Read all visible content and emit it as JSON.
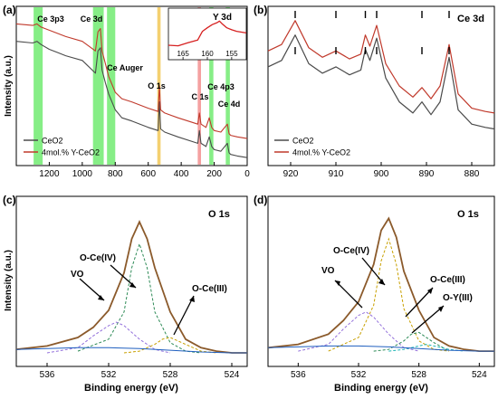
{
  "chart_data": [
    {
      "panel": "(a)",
      "type": "line",
      "xlabel": "",
      "ylabel": "Intensity (a.u.)",
      "xlim": [
        1400,
        0
      ],
      "x_ticks": [
        "1200",
        "1000",
        "800",
        "600",
        "400",
        "200",
        "0"
      ],
      "x_tick_values": [
        1200,
        1000,
        800,
        600,
        400,
        200,
        0
      ],
      "ylim": [
        0,
        100
      ],
      "legend": {
        "placement": "bottom-left",
        "entries": [
          "CeO2",
          "4mol.% Y-CeO2"
        ]
      },
      "series": [
        {
          "name": "CeO2",
          "color": "#4a4a4a",
          "x": [
            1400,
            1300,
            1275,
            1250,
            1200,
            1150,
            1100,
            1000,
            920,
            905,
            890,
            880,
            860,
            840,
            800,
            760,
            700,
            600,
            540,
            532,
            525,
            500,
            420,
            300,
            290,
            280,
            250,
            230,
            215,
            200,
            160,
            120,
            110,
            100,
            60,
            0
          ],
          "y": [
            78,
            77,
            78,
            76,
            73,
            71,
            69,
            66,
            58,
            72,
            74,
            60,
            52,
            45,
            35,
            30,
            28,
            24,
            22,
            40,
            23,
            21,
            18,
            14,
            22,
            14,
            12,
            18,
            12,
            10,
            9,
            14,
            8,
            7,
            6,
            5
          ]
        },
        {
          "name": "4mol.% Y-CeO2",
          "color": "#c0392b",
          "x": [
            1400,
            1300,
            1275,
            1250,
            1200,
            1150,
            1100,
            1000,
            920,
            905,
            890,
            880,
            860,
            840,
            800,
            760,
            700,
            600,
            540,
            532,
            525,
            500,
            420,
            300,
            290,
            280,
            250,
            230,
            215,
            200,
            160,
            120,
            110,
            100,
            60,
            0
          ],
          "y": [
            89,
            88,
            89,
            87,
            85,
            83,
            81,
            78,
            72,
            84,
            86,
            72,
            64,
            56,
            46,
            42,
            40,
            36,
            34,
            50,
            35,
            33,
            30,
            26,
            33,
            26,
            24,
            30,
            24,
            22,
            21,
            26,
            20,
            19,
            18,
            17
          ]
        }
      ],
      "highlights": [
        {
          "label": "Ce 3p3",
          "x_range": [
            1240,
            1295
          ],
          "color": "#5ee85e"
        },
        {
          "label": "Ce 3d",
          "x_range": [
            870,
            935
          ],
          "color": "#5ee85e"
        },
        {
          "label": "Ce Auger",
          "x_range": [
            800,
            850
          ],
          "color": "#5ee85e"
        },
        {
          "label": "O 1s",
          "x_range": [
            525,
            545
          ],
          "color": "#f0c040"
        },
        {
          "label": "C 1s",
          "x_range": [
            280,
            300
          ],
          "color": "#f08080"
        },
        {
          "label": "Ce 4p3",
          "x_range": [
            205,
            230
          ],
          "color": "#5ee85e"
        },
        {
          "label": "Ce 4d",
          "x_range": [
            105,
            130
          ],
          "color": "#5ee85e"
        }
      ],
      "inset": {
        "title": "Y 3d",
        "xlim": [
          168,
          152
        ],
        "x_ticks": [
          "165",
          "160",
          "155"
        ],
        "x_tick_values": [
          165,
          160,
          155
        ],
        "series": [
          {
            "name": "4mol.% Y-CeO2",
            "color": "#d62020",
            "x": [
              168,
              166,
              164,
              162,
              161,
              160,
              159,
              158,
              157.5,
              157,
              156,
              155,
              154,
              152
            ],
            "y": [
              28,
              27,
              33,
              38,
              55,
              62,
              68,
              72,
              75,
              70,
              62,
              58,
              55,
              52
            ]
          }
        ]
      }
    },
    {
      "panel": "(b)",
      "type": "line",
      "title": "Ce 3d",
      "xlabel": "",
      "ylabel": "",
      "xlim": [
        925,
        875
      ],
      "x_ticks": [
        "920",
        "910",
        "900",
        "890",
        "880"
      ],
      "x_tick_values": [
        920,
        910,
        900,
        890,
        880
      ],
      "legend": {
        "placement": "bottom-left",
        "entries": [
          "CeO2",
          "4mol.% Y-CeO2"
        ]
      },
      "peak_markers": [
        919,
        910,
        903.5,
        901,
        891,
        885
      ],
      "series": [
        {
          "name": "CeO2",
          "color": "#4a4a4a",
          "x": [
            925,
            922,
            919,
            916,
            913,
            910,
            907,
            904.5,
            903.5,
            902.5,
            901,
            899,
            896,
            893,
            891,
            889,
            887,
            885,
            883,
            880,
            877,
            875
          ],
          "y": [
            62,
            66,
            82,
            64,
            58,
            62,
            57,
            60,
            73,
            66,
            80,
            55,
            40,
            33,
            40,
            32,
            40,
            68,
            35,
            26,
            24,
            23
          ]
        },
        {
          "name": "4mol.% Y-CeO2",
          "color": "#c0392b",
          "x": [
            925,
            922,
            919,
            916,
            913,
            910,
            907,
            904.5,
            903.5,
            902.5,
            901,
            899,
            896,
            893,
            891,
            889,
            887,
            885,
            883,
            880,
            877,
            875
          ],
          "y": [
            72,
            76,
            91,
            74,
            68,
            72,
            67,
            70,
            82,
            75,
            88,
            64,
            50,
            43,
            49,
            42,
            50,
            76,
            45,
            36,
            34,
            33
          ]
        }
      ]
    },
    {
      "panel": "(c)",
      "type": "line",
      "title": "O 1s",
      "xlabel": "Binding energy (eV)",
      "ylabel": "Intensity (a.u.)",
      "xlim": [
        538,
        523
      ],
      "x_ticks": [
        "536",
        "532",
        "528",
        "524"
      ],
      "x_tick_values": [
        536,
        532,
        528,
        524
      ],
      "annotations": [
        "O-Ce(IV)",
        "VO",
        "O-Ce(III)"
      ],
      "series": [
        {
          "name": "fit envelope",
          "color": "#8b5a2b",
          "x": [
            538,
            536,
            534,
            533,
            532,
            531,
            530.5,
            530,
            529.5,
            529,
            528,
            527,
            526,
            525,
            524,
            523
          ],
          "y": [
            10,
            12,
            17,
            23,
            33,
            55,
            75,
            85,
            75,
            58,
            32,
            16,
            11,
            9,
            8,
            8
          ]
        },
        {
          "name": "O-Ce(IV)",
          "color": "#2e8b57",
          "x": [
            534,
            532,
            531,
            530.5,
            530,
            529.5,
            529,
            528,
            527,
            526
          ],
          "y": [
            9,
            16,
            32,
            58,
            72,
            58,
            32,
            14,
            9,
            8
          ]
        },
        {
          "name": "VO",
          "color": "#9370db",
          "x": [
            536,
            534,
            533,
            532,
            531.5,
            531,
            530,
            529,
            528
          ],
          "y": [
            8,
            11,
            18,
            24,
            26,
            24,
            16,
            10,
            8
          ]
        },
        {
          "name": "O-Ce(III)",
          "color": "#c8a000",
          "x": [
            531,
            530,
            529,
            528.5,
            528,
            527,
            526,
            525
          ],
          "y": [
            8,
            9,
            13,
            16,
            17,
            13,
            9,
            8
          ]
        },
        {
          "name": "background",
          "color": "#1f5fbf",
          "x": [
            538,
            536,
            534,
            532,
            530,
            528,
            526,
            524,
            523
          ],
          "y": [
            10,
            10.5,
            11,
            11,
            10.5,
            9.5,
            8.5,
            8,
            8
          ]
        }
      ]
    },
    {
      "panel": "(d)",
      "type": "line",
      "title": "O 1s",
      "xlabel": "Binding energy (eV)",
      "ylabel": "",
      "xlim": [
        538,
        523
      ],
      "x_ticks": [
        "536",
        "532",
        "528",
        "524"
      ],
      "x_tick_values": [
        536,
        532,
        528,
        524
      ],
      "annotations": [
        "O-Ce(IV)",
        "VO",
        "O-Ce(III)",
        "O-Y(III)"
      ],
      "series": [
        {
          "name": "fit envelope",
          "color": "#8b5a2b",
          "x": [
            538,
            536,
            534,
            533,
            532,
            531,
            530.5,
            530,
            529.5,
            529,
            528,
            527,
            526,
            525,
            524,
            523
          ],
          "y": [
            11,
            13,
            19,
            27,
            38,
            60,
            80,
            87,
            76,
            56,
            33,
            17,
            12,
            10,
            9,
            9
          ]
        },
        {
          "name": "O-Ce(IV)",
          "color": "#c8a000",
          "x": [
            534,
            532,
            531,
            530.5,
            530,
            529.5,
            529,
            528,
            527,
            526
          ],
          "y": [
            9,
            17,
            36,
            62,
            75,
            60,
            34,
            15,
            10,
            9
          ]
        },
        {
          "name": "VO",
          "color": "#9370db",
          "x": [
            536,
            534,
            533,
            532,
            531.5,
            531,
            530,
            529,
            528
          ],
          "y": [
            9,
            13,
            22,
            30,
            32,
            29,
            19,
            11,
            9
          ]
        },
        {
          "name": "O-Ce(III)",
          "color": "#2e8b57",
          "x": [
            531,
            530,
            529,
            528.5,
            528,
            527,
            526
          ],
          "y": [
            9,
            10,
            15,
            19,
            20,
            14,
            9
          ]
        },
        {
          "name": "O-Y(III)",
          "color": "#1fb5b5",
          "x": [
            530,
            529,
            528,
            527.5,
            527,
            526,
            525
          ],
          "y": [
            9,
            10,
            12,
            13,
            12,
            10,
            9
          ]
        },
        {
          "name": "background",
          "color": "#1f5fbf",
          "x": [
            538,
            536,
            534,
            532,
            530,
            528,
            526,
            524,
            523
          ],
          "y": [
            11,
            11.5,
            12,
            12,
            11.5,
            10.5,
            9.5,
            9,
            9
          ]
        }
      ]
    }
  ]
}
